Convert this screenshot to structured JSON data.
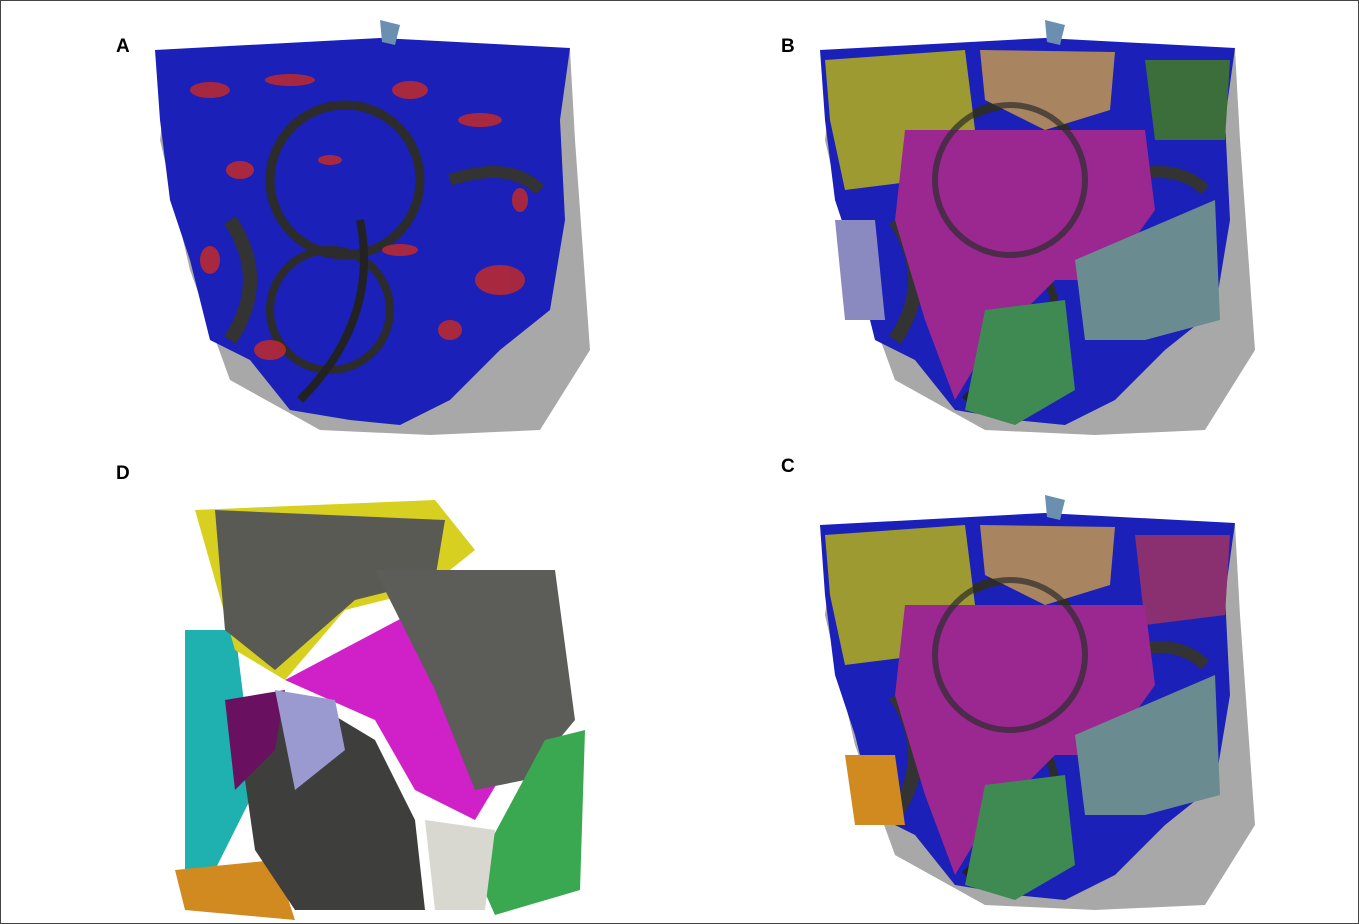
{
  "panels": [
    {
      "label": "A"
    },
    {
      "label": "B"
    },
    {
      "label": "D"
    },
    {
      "label": "C"
    }
  ]
}
